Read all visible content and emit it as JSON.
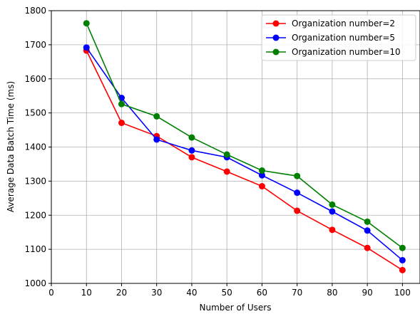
{
  "chart_data": {
    "type": "line",
    "xlabel": "Number of Users",
    "ylabel": "Average Data Batch Time (ms)",
    "xlim": [
      0,
      105
    ],
    "ylim": [
      1000,
      1800
    ],
    "xticks": [
      0,
      10,
      20,
      30,
      40,
      50,
      60,
      70,
      80,
      90,
      100
    ],
    "yticks": [
      1000,
      1100,
      1200,
      1300,
      1400,
      1500,
      1600,
      1700,
      1800
    ],
    "grid": true,
    "legend_position": "top-right",
    "x": [
      10,
      20,
      30,
      40,
      50,
      60,
      70,
      80,
      90,
      100
    ],
    "series": [
      {
        "name": "Organization number=2",
        "color": "#ff0000",
        "values": [
          1683,
          1471,
          1432,
          1370,
          1328,
          1285,
          1213,
          1157,
          1104,
          1039
        ]
      },
      {
        "name": "Organization number=5",
        "color": "#0000ff",
        "values": [
          1692,
          1544,
          1422,
          1390,
          1370,
          1317,
          1266,
          1211,
          1155,
          1068
        ]
      },
      {
        "name": "Organization number=10",
        "color": "#008000",
        "values": [
          1763,
          1526,
          1490,
          1428,
          1378,
          1331,
          1315,
          1231,
          1181,
          1104
        ]
      }
    ]
  }
}
